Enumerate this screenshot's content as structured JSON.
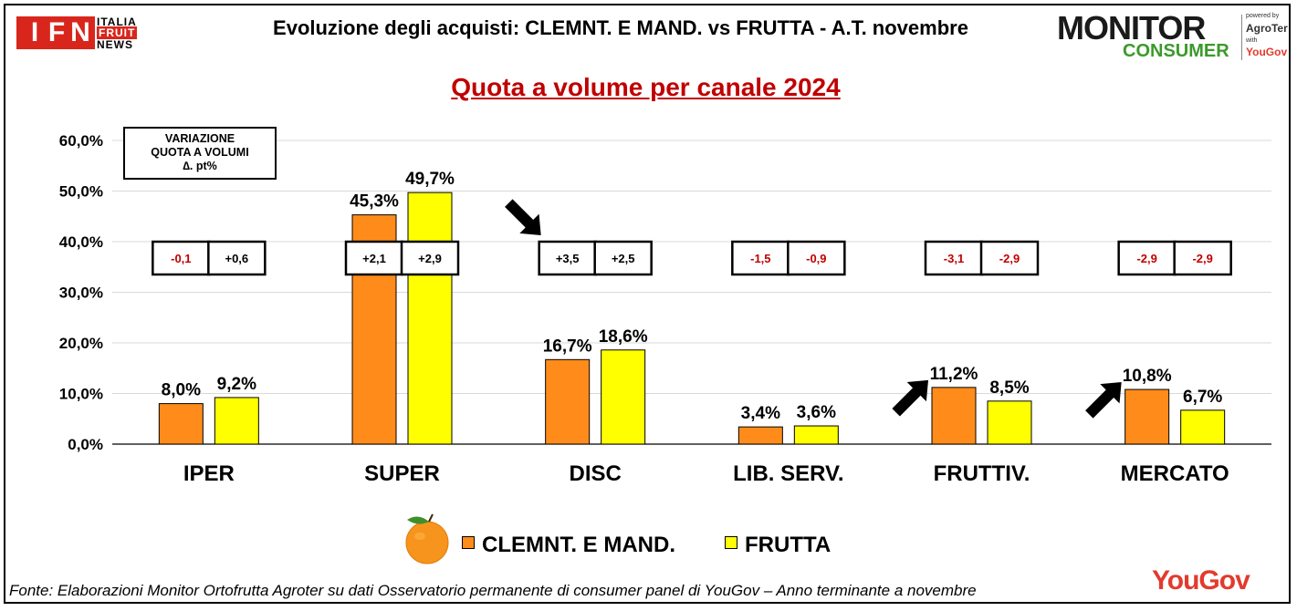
{
  "header": {
    "title": "Evoluzione degli acquisti: CLEMNT. E MAND. vs FRUTTA  - A.T. novembre",
    "subtitle": "Quota a volume per canale 2024"
  },
  "logos": {
    "ifn": {
      "letters": [
        "I",
        "F",
        "N"
      ],
      "line1": "ITALIA",
      "line2": "FRUIT",
      "line3": "NEWS"
    },
    "monitor_consumer": {
      "monitor": "MONITOR",
      "consumer": "CONSUMER",
      "powered_by": "powered by",
      "agroter": "AgroTer",
      "with": "with",
      "yougov": "YouGov"
    }
  },
  "variation_box": {
    "line1": "VARIAZIONE",
    "line2": "QUOTA A VOLUMI",
    "line3": "∆. pt%"
  },
  "colors": {
    "clementine": "#ff8c1a",
    "frutta": "#ffff00",
    "variation_negative": "#c00000",
    "variation_positive": "#000000",
    "subtitle": "#c00000",
    "gridline": "#d9d9d9"
  },
  "chart_data": {
    "type": "bar",
    "categories": [
      "IPER",
      "SUPER",
      "DISC",
      "LIB. SERV.",
      "FRUTTIV.",
      "MERCATO"
    ],
    "series": [
      {
        "name": "CLEMNT. E MAND.",
        "values": [
          8.0,
          45.3,
          16.7,
          3.4,
          11.2,
          10.8
        ],
        "labels": [
          "8,0%",
          "45,3%",
          "16,7%",
          "3,4%",
          "11,2%",
          "10,8%"
        ],
        "variations": [
          "-0,1",
          "+2,1",
          "+3,5",
          "-1,5",
          "-3,1",
          "-2,9"
        ]
      },
      {
        "name": "FRUTTA",
        "values": [
          9.2,
          49.7,
          18.6,
          3.6,
          8.5,
          6.7
        ],
        "labels": [
          "9,2%",
          "49,7%",
          "18,6%",
          "3,6%",
          "8,5%",
          "6,7%"
        ],
        "variations": [
          "+0,6",
          "+2,9",
          "+2,5",
          "-0,9",
          "-2,9",
          "-2,9"
        ]
      }
    ],
    "ylim": [
      0,
      60
    ],
    "yticks": [
      0,
      10,
      20,
      30,
      40,
      50,
      60
    ],
    "ytick_labels": [
      "0,0%",
      "10,0%",
      "20,0%",
      "30,0%",
      "40,0%",
      "50,0%",
      "60,0%"
    ],
    "grid": true,
    "legend_position": "bottom-center",
    "arrows": [
      {
        "category": "DISC",
        "direction": "down-right"
      },
      {
        "category": "FRUTTIV.",
        "direction": "up-right"
      },
      {
        "category": "MERCATO",
        "direction": "up-right"
      }
    ]
  },
  "footer": {
    "source": "Fonte: Elaborazioni Monitor Ortofrutta Agroter su dati Osservatorio permanente di consumer panel di YouGov  – Anno terminante a novembre",
    "brand": "YouGov"
  }
}
